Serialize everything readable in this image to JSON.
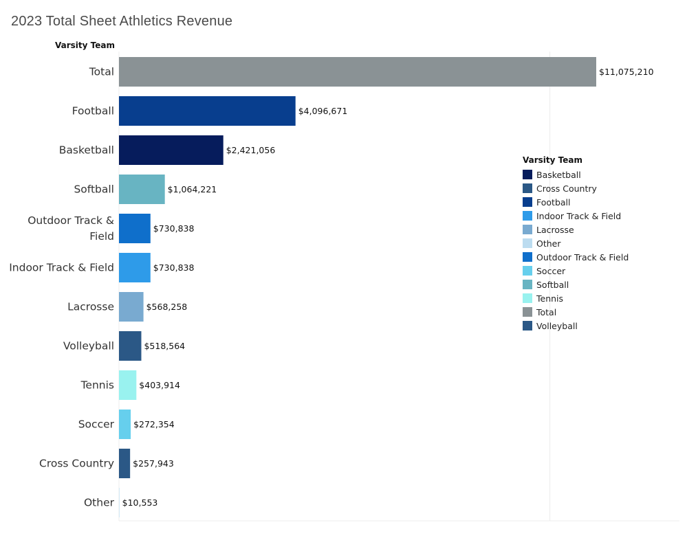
{
  "chart_data": {
    "type": "bar",
    "orientation": "horizontal",
    "title": "2023 Total Sheet Athletics Revenue",
    "row_header": "Varsity Team",
    "xlabel": "",
    "ylabel": "Varsity Team",
    "xlim": [
      0,
      13000000
    ],
    "grid": "vertical gridline at 10,000,000",
    "gridlines": [
      10000000
    ],
    "categories": [
      "Total",
      "Football",
      "Basketball",
      "Softball",
      "Outdoor Track & Field",
      "Indoor Track & Field",
      "Lacrosse",
      "Volleyball",
      "Tennis",
      "Soccer",
      "Cross Country",
      "Other"
    ],
    "category_display": [
      [
        "Total"
      ],
      [
        "Football"
      ],
      [
        "Basketball"
      ],
      [
        "Softball"
      ],
      [
        "Outdoor Track &",
        "Field"
      ],
      [
        "Indoor Track & Field"
      ],
      [
        "Lacrosse"
      ],
      [
        "Volleyball"
      ],
      [
        "Tennis"
      ],
      [
        "Soccer"
      ],
      [
        "Cross Country"
      ],
      [
        "Other"
      ]
    ],
    "values": [
      11075210,
      4096671,
      2421056,
      1064221,
      730838,
      730838,
      568258,
      518564,
      403914,
      272354,
      257943,
      10553
    ],
    "value_labels": [
      "$11,075,210",
      "$4,096,671",
      "$2,421,056",
      "$1,064,221",
      "$730,838",
      "$730,838",
      "$568,258",
      "$518,564",
      "$403,914",
      "$272,354",
      "$257,943",
      "$10,553"
    ],
    "bar_colors": [
      "#8a9295",
      "#083e8e",
      "#061c5c",
      "#68b4c2",
      "#0f6fcb",
      "#2e9be9",
      "#79aad0",
      "#2b5886",
      "#99f2ef",
      "#66cfed",
      "#2b5886",
      "#bcdcf0"
    ],
    "legend": {
      "title": "Varsity Team",
      "position": "right",
      "items": [
        {
          "label": "Basketball",
          "color": "#061c5c"
        },
        {
          "label": "Cross Country",
          "color": "#2b5886"
        },
        {
          "label": "Football",
          "color": "#083e8e"
        },
        {
          "label": "Indoor Track & Field",
          "color": "#2e9be9"
        },
        {
          "label": "Lacrosse",
          "color": "#79aad0"
        },
        {
          "label": "Other",
          "color": "#bcdcf0"
        },
        {
          "label": "Outdoor Track & Field",
          "color": "#0f6fcb"
        },
        {
          "label": "Soccer",
          "color": "#66cfed"
        },
        {
          "label": "Softball",
          "color": "#68b4c2"
        },
        {
          "label": "Tennis",
          "color": "#99f2ef"
        },
        {
          "label": "Total",
          "color": "#8a9295"
        },
        {
          "label": "Volleyball",
          "color": "#2b5886"
        }
      ]
    }
  }
}
